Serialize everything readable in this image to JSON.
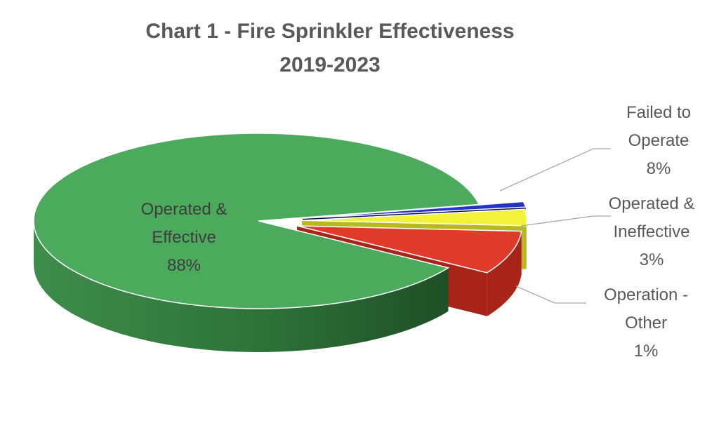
{
  "chart_data": {
    "type": "pie",
    "title": "Chart 1 - Fire Sprinkler Effectiveness",
    "subtitle": "2019-2023",
    "slices": [
      {
        "name": "Operated & Effective",
        "value": 88,
        "label_lines": [
          "Operated &",
          "Effective",
          "88%"
        ],
        "color": "#4caa5c",
        "side": "#2f7a3b",
        "label_color": "#3d3d3d",
        "label_placement": "inside"
      },
      {
        "name": "Failed to Operate",
        "value": 8,
        "label_lines": [
          "Failed to",
          "Operate",
          "8%"
        ],
        "color": "#e03a2a",
        "side": "#a82418",
        "label_color": "#595959",
        "label_placement": "outside"
      },
      {
        "name": "Operated & Ineffective",
        "value": 3,
        "label_lines": [
          "Operated &",
          "Ineffective",
          "3%"
        ],
        "color": "#f2f23a",
        "side": "#b8b820",
        "label_color": "#595959",
        "label_placement": "outside"
      },
      {
        "name": "Operation - Other",
        "value": 1,
        "label_lines": [
          "Operation -",
          "Other",
          "1%"
        ],
        "color": "#2233cc",
        "side": "#0d0d55",
        "label_color": "#595959",
        "label_placement": "outside"
      }
    ],
    "legend": "none",
    "style": "3d-exploded"
  }
}
